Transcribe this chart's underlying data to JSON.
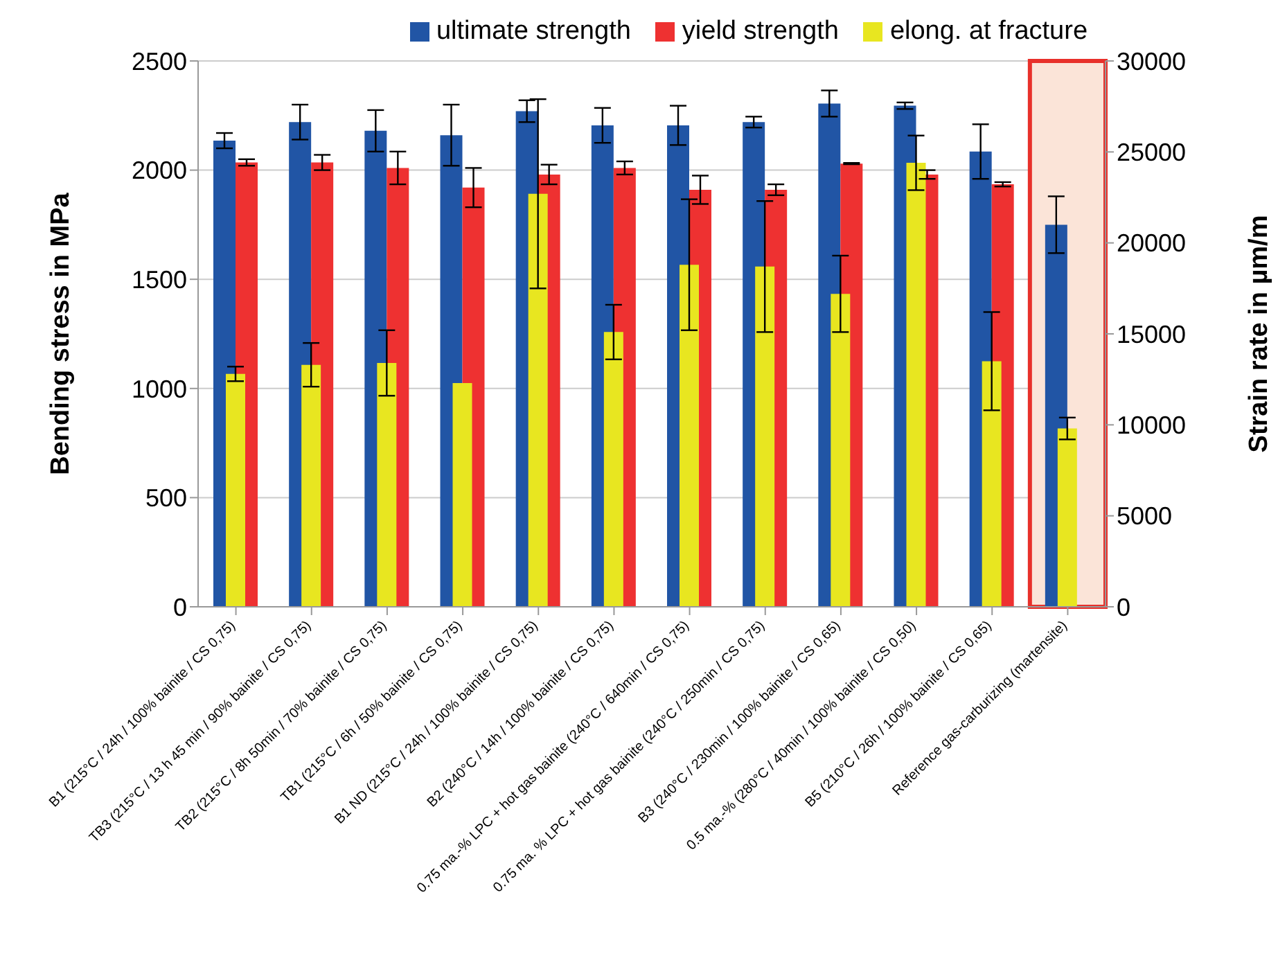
{
  "chart_data": {
    "type": "bar",
    "ylabel": "Bending stress in MPa",
    "y2label": "Strain rate in µm/m",
    "categories": [
      "B1 (215°C / 24h / 100% bainite / CS 0,75)",
      "TB3 (215°C / 13 h 45 min / 90% bainite / CS 0,75)",
      "TB2 (215°C / 8h 50min / 70% bainite / CS 0,75)",
      "TB1 (215°C / 6h / 50% bainite / CS 0,75)",
      "B1 ND (215°C / 24h / 100% bainite / CS 0,75)",
      "B2 (240°C / 14h / 100% bainite / CS 0,75)",
      "0.75 ma.-% LPC + hot gas bainite (240°C / 640min /  CS 0,75)",
      "0.75 ma. % LPC  + hot gas bainite (240°C / 250min / CS 0,75)",
      "B3 (240°C / 230min / 100% bainite / CS 0,65)",
      "0.5 ma.-% (280°C / 40min / 100% bainite / CS 0,50)",
      "B5 (210°C / 26h / 100% bainite / CS 0,65)",
      "Reference gas-carburizing (martensite)"
    ],
    "series": [
      {
        "name": "ultimate strength",
        "color": "#2155a5",
        "values": [
          2135,
          2220,
          2180,
          2160,
          2270,
          2205,
          2205,
          2220,
          2305,
          2295,
          2085,
          1750
        ],
        "errors": [
          35,
          80,
          95,
          140,
          50,
          80,
          90,
          25,
          60,
          15,
          125,
          130
        ]
      },
      {
        "name": "yield strength",
        "color": "#ee3131",
        "values": [
          2035,
          2035,
          2010,
          1920,
          1980,
          2010,
          1910,
          1910,
          2030,
          1980,
          1935,
          null
        ],
        "errors": [
          15,
          35,
          75,
          90,
          45,
          30,
          65,
          25,
          3,
          20,
          10,
          null
        ]
      },
      {
        "name": "elong. at fracture",
        "color": "#e8e620",
        "axis": "y2",
        "values": [
          12800,
          13300,
          13400,
          12300,
          22700,
          15100,
          18800,
          18700,
          17200,
          24400,
          13500,
          9800
        ],
        "errors": [
          400,
          1200,
          1800,
          null,
          5200,
          1500,
          3600,
          3600,
          2100,
          1500,
          2700,
          600
        ]
      }
    ],
    "ylim": [
      0,
      2500
    ],
    "yticks": [
      0,
      500,
      1000,
      1500,
      2000,
      2500
    ],
    "y2lim": [
      0,
      30000
    ],
    "y2ticks": [
      0,
      5000,
      10000,
      15000,
      20000,
      25000,
      30000
    ],
    "bands": [
      {
        "axis": "x",
        "from": "Reference gas-carburizing (martensite)",
        "to": "Reference gas-carburizing (martensite)",
        "color": "#fbe4d8"
      }
    ],
    "grid": "y",
    "legend": "top"
  }
}
